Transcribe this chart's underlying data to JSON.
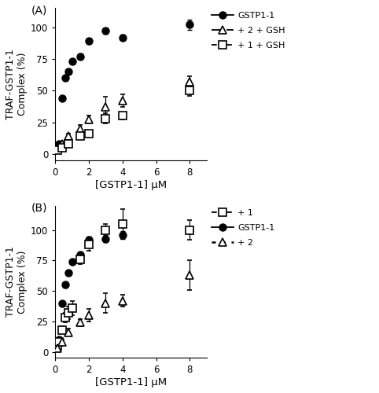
{
  "panel_A": {
    "title": "(A)",
    "gstp1_x": [
      0.1,
      0.2,
      0.4,
      0.6,
      0.8,
      1.0,
      1.5,
      2.0,
      3.0,
      4.0,
      8.0
    ],
    "gstp1_y": [
      5,
      8,
      44,
      60,
      65,
      73,
      77,
      89,
      97,
      92,
      102
    ],
    "gstp1_yerr": [
      1,
      1,
      2,
      2,
      2,
      2,
      2,
      2,
      2,
      2,
      4
    ],
    "comp2_x": [
      0.1,
      0.4,
      0.8,
      1.5,
      2.0,
      3.0,
      4.0,
      8.0
    ],
    "comp2_y": [
      5,
      8,
      14,
      20,
      27,
      37,
      42,
      57
    ],
    "comp2_yerr": [
      2,
      2,
      2,
      3,
      3,
      8,
      5,
      4
    ],
    "comp1_x": [
      0.1,
      0.4,
      0.8,
      1.5,
      2.0,
      3.0,
      4.0,
      8.0
    ],
    "comp1_y": [
      3,
      5,
      8,
      14,
      16,
      28,
      30,
      50
    ],
    "comp1_yerr": [
      1,
      1,
      2,
      2,
      2,
      4,
      3,
      4
    ],
    "ylabel": "TRAF-GSTP1-1\nComplex (%)",
    "xlabel": "[GSTP1-1] μM",
    "legend": [
      "GSTP1-1",
      "+ 2 + GSH",
      "+ 1 + GSH"
    ],
    "ylim": [
      -5,
      115
    ],
    "xlim": [
      0,
      9
    ],
    "xticks": [
      0,
      2,
      4,
      6,
      8
    ],
    "yticks": [
      0,
      25,
      50,
      75,
      100
    ]
  },
  "panel_B": {
    "title": "(B)",
    "gstp1_x": [
      0.1,
      0.2,
      0.4,
      0.6,
      0.8,
      1.0,
      1.5,
      2.0,
      3.0,
      4.0,
      8.0
    ],
    "gstp1_y": [
      5,
      10,
      40,
      55,
      65,
      74,
      80,
      92,
      93,
      96,
      100
    ],
    "gstp1_yerr": [
      1,
      1,
      2,
      2,
      2,
      2,
      2,
      3,
      3,
      3,
      3
    ],
    "comp1_x": [
      0.1,
      0.2,
      0.4,
      0.6,
      0.8,
      1.0,
      1.5,
      2.0,
      3.0,
      4.0,
      8.0
    ],
    "comp1_y": [
      5,
      8,
      18,
      28,
      32,
      36,
      76,
      88,
      100,
      105,
      100
    ],
    "comp1_yerr": [
      1,
      1,
      3,
      4,
      5,
      6,
      4,
      5,
      5,
      12,
      8
    ],
    "comp2_x": [
      0.1,
      0.4,
      0.8,
      1.5,
      2.0,
      3.0,
      4.0,
      8.0
    ],
    "comp2_y": [
      3,
      8,
      16,
      24,
      30,
      40,
      42,
      63
    ],
    "comp2_yerr": [
      2,
      2,
      3,
      3,
      5,
      8,
      5,
      12
    ],
    "ylabel": "TRAF-GSTP1-1\nComplex (%)",
    "xlabel": "[GSTP1-1] μM",
    "legend": [
      "+ 1",
      "GSTP1-1",
      "+ 2"
    ],
    "ylim": [
      -5,
      120
    ],
    "xlim": [
      0,
      9
    ],
    "xticks": [
      0,
      2,
      4,
      6,
      8
    ],
    "yticks": [
      0,
      25,
      50,
      75,
      100
    ]
  }
}
